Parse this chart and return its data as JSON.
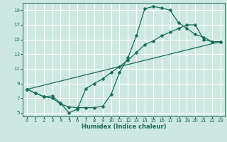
{
  "xlabel": "Humidex (Indice chaleur)",
  "background_color": "#cde8e0",
  "grid_color": "#b0d8cc",
  "line_color": "#1a6b5a",
  "xlim": [
    -0.5,
    23.5
  ],
  "ylim": [
    4.5,
    20.0
  ],
  "xticks": [
    0,
    1,
    2,
    3,
    4,
    5,
    6,
    7,
    8,
    9,
    10,
    11,
    12,
    13,
    14,
    15,
    16,
    17,
    18,
    19,
    20,
    21,
    22,
    23
  ],
  "yticks": [
    5,
    7,
    9,
    11,
    13,
    15,
    17,
    19
  ],
  "line1_x": [
    0,
    1,
    2,
    3,
    4,
    5,
    6,
    7,
    8,
    9,
    10,
    11,
    12,
    13,
    14,
    15,
    16,
    17,
    18,
    19,
    20,
    21,
    22,
    23
  ],
  "line1_y": [
    8.2,
    7.7,
    7.2,
    7.0,
    6.2,
    5.8,
    5.7,
    5.7,
    5.7,
    5.9,
    7.5,
    10.5,
    12.5,
    15.5,
    19.2,
    19.5,
    19.3,
    19.0,
    17.3,
    16.5,
    15.7,
    15.3,
    14.7,
    14.7
  ],
  "line2_x": [
    0,
    1,
    2,
    3,
    4,
    5,
    6,
    7,
    8,
    9,
    10,
    11,
    12,
    13,
    14,
    15,
    16,
    17,
    18,
    19,
    20,
    21,
    22,
    23
  ],
  "line2_y": [
    8.2,
    7.7,
    7.2,
    7.3,
    6.3,
    5.0,
    5.5,
    8.3,
    9.0,
    9.6,
    10.5,
    11.3,
    12.2,
    13.2,
    14.3,
    14.8,
    15.5,
    16.0,
    16.5,
    17.0,
    17.0,
    15.0,
    14.7,
    14.7
  ]
}
